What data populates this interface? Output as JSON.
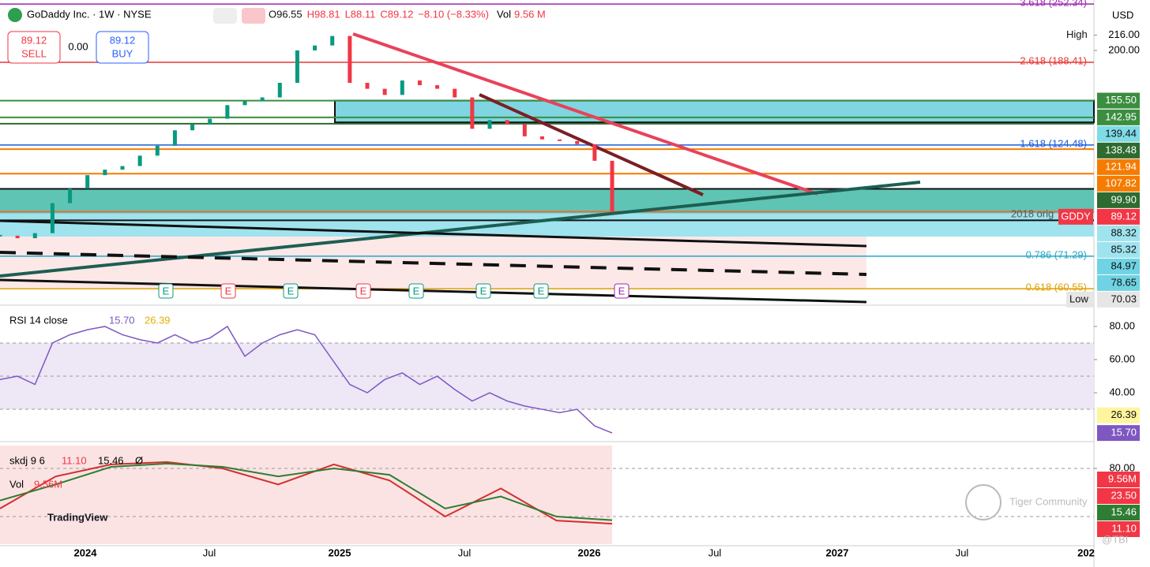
{
  "header": {
    "symbol": "GoDaddy Inc. · 1W · NYSE",
    "ohlc": [
      "O96.55",
      "H98.81",
      "L88.11",
      "C89.12",
      "−8.10 (−8.33%)"
    ],
    "vol_label": "Vol",
    "vol_value": "9.56 M"
  },
  "trade": {
    "sell_price": "89.12",
    "sell": "SELL",
    "spread": "0.00",
    "buy_price": "89.12",
    "buy": "BUY"
  },
  "currency": "USD",
  "price_panel": {
    "ylim": [
      56.2,
      257.5
    ],
    "log_scale": true,
    "closes": [
      79,
      78,
      80,
      93,
      100,
      107,
      110,
      112,
      118,
      124,
      134,
      138,
      142,
      152,
      155,
      158,
      170,
      200,
      205,
      215,
      170,
      165,
      160,
      172,
      168,
      165,
      158,
      135,
      141,
      138,
      130,
      128,
      127,
      125,
      115,
      89.12
    ],
    "yticks": [
      {
        "value": 216,
        "label": "216.00",
        "tag": "High"
      },
      {
        "value": 200,
        "label": "200.00"
      }
    ],
    "fib_levels": [
      {
        "value": 252.34,
        "label": "3.618 (252.34)",
        "color": "#9c27b0"
      },
      {
        "value": 188.41,
        "label": "2.618 (188.41)",
        "color": "#e53935"
      },
      {
        "value": 124.48,
        "label": "1.618 (124.48)",
        "color": "#1e5bd8"
      },
      {
        "value": 71.29,
        "label": "0.786 (71.29)",
        "color": "#26a6c9"
      },
      {
        "value": 60.55,
        "label": "0.618 (60.55)",
        "color": "#e0a000"
      }
    ],
    "price_labels": [
      {
        "value": 155.5,
        "label": "155.50",
        "color": "#3b8e3f"
      },
      {
        "value": 142.95,
        "label": "142.95",
        "color": "#3b8e3f"
      },
      {
        "value": 139.44,
        "label": "139.44",
        "color": "#7fdbe6"
      },
      {
        "value": 138.48,
        "label": "138.48",
        "color": "#2e6b30"
      },
      {
        "value": 121.94,
        "label": "121.94",
        "color": "#f57c00"
      },
      {
        "value": 107.82,
        "label": "107.82",
        "color": "#f57c00"
      },
      {
        "value": 99.9,
        "label": "99.90",
        "color": "#2e6b30"
      },
      {
        "value": 89.12,
        "label": "89.12",
        "color": "#f23645",
        "tag": "GDDY"
      },
      {
        "value": 88.32,
        "label": "88.32",
        "color": "#9fe3ee"
      },
      {
        "value": 85.32,
        "label": "85.32",
        "color": "#9fe3ee"
      },
      {
        "value": 84.97,
        "label": "84.97",
        "color": "#6fd3e3"
      },
      {
        "value": 78.65,
        "label": "78.65",
        "color": "#6fd3e3"
      },
      {
        "value": 70.03,
        "label": "70.03",
        "color": "#e6e6e6",
        "tag": "Low"
      }
    ],
    "earnings": [
      "E",
      "E",
      "E",
      "E",
      "E",
      "E",
      "E",
      "E"
    ],
    "note": "2018 orig"
  },
  "rsi_panel": {
    "title": "RSI 14 close",
    "rsi": "15.70",
    "ma": "26.39",
    "ylim": [
      12.9,
      91.4
    ],
    "values": [
      48,
      50,
      45,
      70,
      75,
      78,
      80,
      75,
      72,
      70,
      75,
      70,
      73,
      80,
      62,
      70,
      75,
      78,
      75,
      60,
      45,
      40,
      48,
      52,
      45,
      50,
      42,
      35,
      40,
      35,
      32,
      30,
      28,
      30,
      20,
      15.7
    ],
    "yticks": [
      {
        "value": 80,
        "label": "80.00"
      },
      {
        "value": 60,
        "label": "60.00"
      },
      {
        "value": 40,
        "label": "40.00"
      }
    ],
    "labels": [
      {
        "value": 26.39,
        "label": "26.39",
        "color": "#fff59d"
      },
      {
        "value": 15.7,
        "label": "15.70",
        "color": "#7e57c2"
      }
    ]
  },
  "skdj_panel": {
    "title": "skdj 9 6",
    "k": "11.10",
    "d": "15.46",
    "sym": "Ø",
    "vol": "Vol",
    "vol_value": "9.56M",
    "ylim": [
      -14.4,
      108.5
    ],
    "k_values": [
      30,
      70,
      85,
      88,
      80,
      60,
      85,
      65,
      20,
      55,
      15,
      11.1
    ],
    "d_values": [
      40,
      60,
      82,
      86,
      82,
      70,
      80,
      72,
      30,
      45,
      20,
      15.46
    ],
    "yticks": [
      {
        "value": 80,
        "label": "80.00"
      }
    ],
    "labels": [
      {
        "label": "9.56M",
        "color": "#f23645"
      },
      {
        "label": "23.50",
        "color": "#f23645"
      },
      {
        "label": "15.46",
        "color": "#2e7d32"
      },
      {
        "label": "11.10",
        "color": "#f23645"
      }
    ]
  },
  "time_axis": [
    "2024",
    "Jul",
    "2025",
    "Jul",
    "2026",
    "Jul",
    "2027",
    "Jul",
    "202"
  ],
  "watermarks": {
    "logo": "TradingView",
    "community": "Tiger Community",
    "handle": "@TBI"
  }
}
